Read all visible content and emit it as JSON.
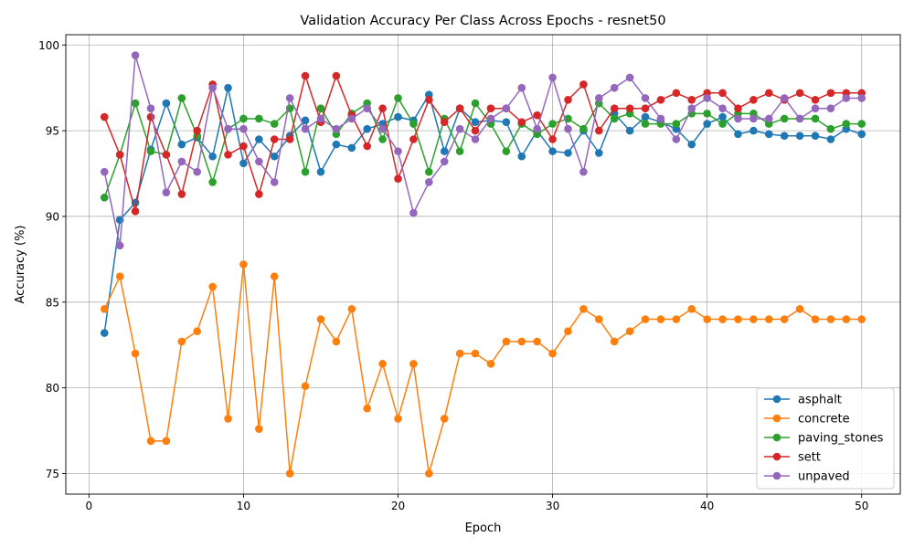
{
  "chart_data": {
    "type": "line",
    "title": "Validation Accuracy Per Class Across Epochs - resnet50",
    "xlabel": "Epoch",
    "ylabel": "Accuracy (%)",
    "xlim": [
      -1.5,
      52.5
    ],
    "ylim": [
      73.8,
      100.6
    ],
    "xticks": [
      0,
      10,
      20,
      30,
      40,
      50
    ],
    "yticks": [
      75,
      80,
      85,
      90,
      95,
      100
    ],
    "grid": true,
    "legend_position": "lower-right",
    "x": [
      1,
      2,
      3,
      4,
      5,
      6,
      7,
      8,
      9,
      10,
      11,
      12,
      13,
      14,
      15,
      16,
      17,
      18,
      19,
      20,
      21,
      22,
      23,
      24,
      25,
      26,
      27,
      28,
      29,
      30,
      31,
      32,
      33,
      34,
      35,
      36,
      37,
      38,
      39,
      40,
      41,
      42,
      43,
      44,
      45,
      46,
      47,
      48,
      49,
      50
    ],
    "series": [
      {
        "name": "asphalt",
        "color": "#1f77b4",
        "values": [
          83.2,
          89.8,
          90.8,
          93.9,
          96.6,
          94.2,
          94.6,
          93.5,
          97.5,
          93.1,
          94.5,
          93.5,
          94.7,
          95.6,
          92.6,
          94.2,
          94.0,
          95.1,
          95.4,
          95.8,
          95.6,
          97.1,
          93.8,
          96.3,
          95.5,
          95.6,
          95.5,
          93.5,
          95.0,
          93.8,
          93.7,
          95.0,
          93.7,
          96.0,
          95.0,
          95.8,
          95.5,
          95.1,
          94.2,
          95.4,
          95.8,
          94.8,
          95.0,
          94.8,
          94.7,
          94.7,
          94.7,
          94.5,
          95.1,
          94.8
        ]
      },
      {
        "name": "concrete",
        "color": "#ff7f0e",
        "values": [
          84.6,
          86.5,
          82.0,
          76.9,
          76.9,
          82.7,
          83.3,
          85.9,
          78.2,
          87.2,
          77.6,
          86.5,
          75.0,
          80.1,
          84.0,
          82.7,
          84.6,
          78.8,
          81.4,
          78.2,
          81.4,
          75.0,
          78.2,
          82.0,
          82.0,
          81.4,
          82.7,
          82.7,
          82.7,
          82.0,
          83.3,
          84.6,
          84.0,
          82.7,
          83.3,
          84.0,
          84.0,
          84.0,
          84.6,
          84.0,
          84.0,
          84.0,
          84.0,
          84.0,
          84.0,
          84.6,
          84.0,
          84.0,
          84.0,
          84.0
        ]
      },
      {
        "name": "paving_stones",
        "color": "#2ca02c",
        "values": [
          91.1,
          93.6,
          96.6,
          93.8,
          93.6,
          96.9,
          94.7,
          92.0,
          95.1,
          95.7,
          95.7,
          95.4,
          96.3,
          92.6,
          96.3,
          94.8,
          96.0,
          96.6,
          94.5,
          96.9,
          95.4,
          92.6,
          95.7,
          93.8,
          96.6,
          95.4,
          93.8,
          95.4,
          94.8,
          95.4,
          95.7,
          95.1,
          96.6,
          95.7,
          96.0,
          95.4,
          95.4,
          95.4,
          96.0,
          96.0,
          95.4,
          96.0,
          96.0,
          95.4,
          95.7,
          95.7,
          95.7,
          95.1,
          95.4,
          95.4
        ]
      },
      {
        "name": "sett",
        "color": "#d62728",
        "values": [
          95.8,
          93.6,
          90.3,
          95.8,
          93.6,
          91.3,
          95.0,
          97.7,
          93.6,
          94.1,
          91.3,
          94.5,
          94.5,
          98.2,
          95.5,
          98.2,
          95.9,
          94.1,
          96.3,
          92.2,
          94.5,
          96.8,
          95.5,
          96.3,
          95.0,
          96.3,
          96.3,
          95.5,
          95.9,
          94.5,
          96.8,
          97.7,
          95.0,
          96.3,
          96.3,
          96.3,
          96.8,
          97.2,
          96.8,
          97.2,
          97.2,
          96.3,
          96.8,
          97.2,
          96.8,
          97.2,
          96.8,
          97.2,
          97.2,
          97.2
        ]
      },
      {
        "name": "unpaved",
        "color": "#9467bd",
        "values": [
          92.6,
          88.3,
          99.4,
          96.3,
          91.4,
          93.2,
          92.6,
          97.5,
          95.1,
          95.1,
          93.2,
          92.0,
          96.9,
          95.1,
          95.7,
          95.1,
          95.7,
          96.3,
          95.1,
          93.8,
          90.2,
          92.0,
          93.2,
          95.1,
          94.5,
          95.7,
          96.3,
          97.5,
          95.1,
          98.1,
          95.1,
          92.6,
          96.9,
          97.5,
          98.1,
          96.9,
          95.7,
          94.5,
          96.3,
          96.9,
          96.3,
          95.7,
          95.7,
          95.7,
          96.9,
          95.7,
          96.3,
          96.3,
          96.9,
          96.9
        ]
      }
    ]
  }
}
